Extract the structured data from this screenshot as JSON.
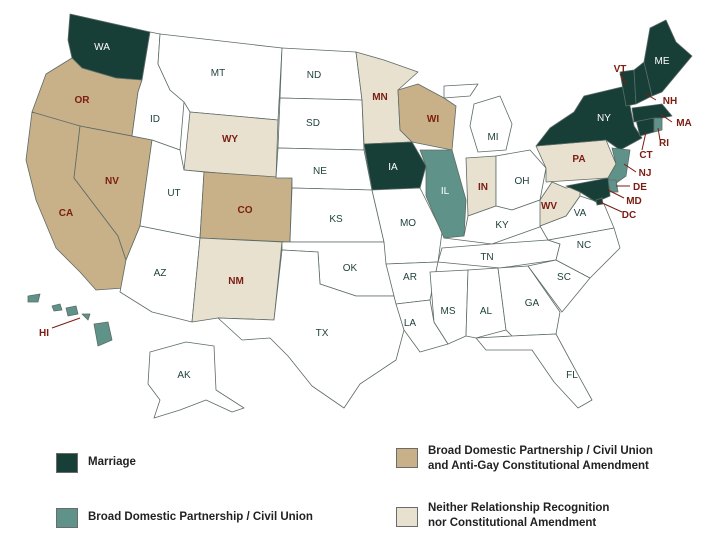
{
  "colors": {
    "marriage": "#173f37",
    "civil_union": "#5f9389",
    "partnership_amendment": "#c8b089",
    "neither": "#e9e1d0",
    "none": "#ffffff",
    "label_red": "#7b1d12"
  },
  "legend": {
    "marriage": "Marriage",
    "civil_union": "Broad Domestic Partnership / Civil Union",
    "partnership_amendment_line1": "Broad Domestic Partnership / Civil Union",
    "partnership_amendment_line2": "and Anti-Gay Constitutional Amendment",
    "neither_line1": "Neither Relationship Recognition",
    "neither_line2": "nor Constitutional Amendment"
  },
  "states": [
    {
      "id": "WA",
      "label": "WA",
      "category": "marriage"
    },
    {
      "id": "OR",
      "label": "OR",
      "category": "partnership_amendment"
    },
    {
      "id": "CA",
      "label": "CA",
      "category": "partnership_amendment"
    },
    {
      "id": "NV",
      "label": "NV",
      "category": "partnership_amendment"
    },
    {
      "id": "ID",
      "label": "ID",
      "category": "none"
    },
    {
      "id": "MT",
      "label": "MT",
      "category": "none"
    },
    {
      "id": "WY",
      "label": "WY",
      "category": "neither"
    },
    {
      "id": "UT",
      "label": "UT",
      "category": "none"
    },
    {
      "id": "AZ",
      "label": "AZ",
      "category": "none"
    },
    {
      "id": "CO",
      "label": "CO",
      "category": "partnership_amendment"
    },
    {
      "id": "NM",
      "label": "NM",
      "category": "neither"
    },
    {
      "id": "ND",
      "label": "ND",
      "category": "none"
    },
    {
      "id": "SD",
      "label": "SD",
      "category": "none"
    },
    {
      "id": "NE",
      "label": "NE",
      "category": "none"
    },
    {
      "id": "KS",
      "label": "KS",
      "category": "none"
    },
    {
      "id": "OK",
      "label": "OK",
      "category": "none"
    },
    {
      "id": "TX",
      "label": "TX",
      "category": "none"
    },
    {
      "id": "MN",
      "label": "MN",
      "category": "neither"
    },
    {
      "id": "IA",
      "label": "IA",
      "category": "marriage"
    },
    {
      "id": "MO",
      "label": "MO",
      "category": "none"
    },
    {
      "id": "AR",
      "label": "AR",
      "category": "none"
    },
    {
      "id": "LA",
      "label": "LA",
      "category": "none"
    },
    {
      "id": "WI",
      "label": "WI",
      "category": "partnership_amendment"
    },
    {
      "id": "IL",
      "label": "IL",
      "category": "civil_union"
    },
    {
      "id": "MI",
      "label": "MI",
      "category": "none"
    },
    {
      "id": "IN",
      "label": "IN",
      "category": "neither"
    },
    {
      "id": "OH",
      "label": "OH",
      "category": "none"
    },
    {
      "id": "KY",
      "label": "KY",
      "category": "none"
    },
    {
      "id": "TN",
      "label": "TN",
      "category": "none"
    },
    {
      "id": "MS",
      "label": "MS",
      "category": "none"
    },
    {
      "id": "AL",
      "label": "AL",
      "category": "none"
    },
    {
      "id": "GA",
      "label": "GA",
      "category": "none"
    },
    {
      "id": "FL",
      "label": "FL",
      "category": "none"
    },
    {
      "id": "SC",
      "label": "SC",
      "category": "none"
    },
    {
      "id": "NC",
      "label": "NC",
      "category": "none"
    },
    {
      "id": "VA",
      "label": "VA",
      "category": "none"
    },
    {
      "id": "WV",
      "label": "WV",
      "category": "neither"
    },
    {
      "id": "PA",
      "label": "PA",
      "category": "neither"
    },
    {
      "id": "NY",
      "label": "NY",
      "category": "marriage"
    },
    {
      "id": "NJ",
      "label": "NJ",
      "category": "civil_union"
    },
    {
      "id": "DE",
      "label": "DE",
      "category": "civil_union"
    },
    {
      "id": "MD",
      "label": "MD",
      "category": "marriage"
    },
    {
      "id": "DC",
      "label": "DC",
      "category": "marriage"
    },
    {
      "id": "CT",
      "label": "CT",
      "category": "marriage"
    },
    {
      "id": "RI",
      "label": "RI",
      "category": "civil_union"
    },
    {
      "id": "MA",
      "label": "MA",
      "category": "marriage"
    },
    {
      "id": "VT",
      "label": "VT",
      "category": "marriage"
    },
    {
      "id": "NH",
      "label": "NH",
      "category": "marriage"
    },
    {
      "id": "ME",
      "label": "ME",
      "category": "marriage"
    },
    {
      "id": "AK",
      "label": "AK",
      "category": "none"
    },
    {
      "id": "HI",
      "label": "HI",
      "category": "civil_union"
    }
  ]
}
